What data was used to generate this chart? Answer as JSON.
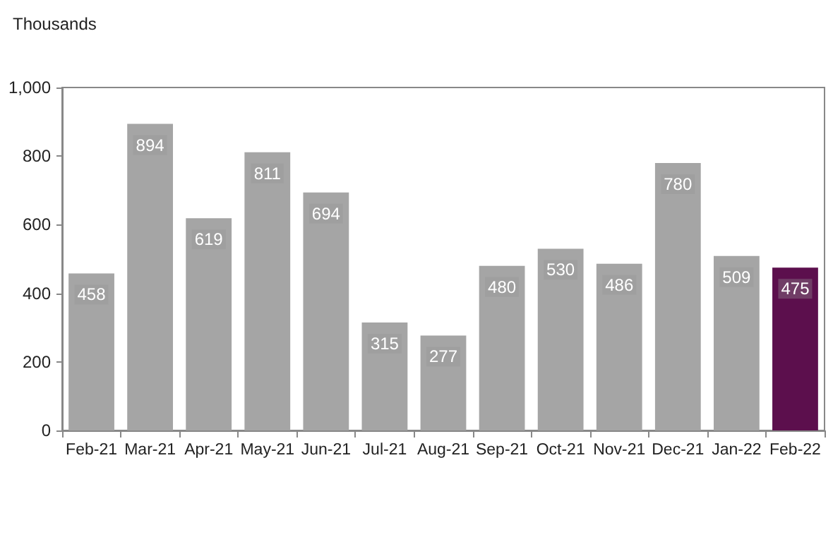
{
  "chart_data": {
    "type": "bar",
    "ylabel": "Thousands",
    "categories": [
      "Feb-21",
      "Mar-21",
      "Apr-21",
      "May-21",
      "Jun-21",
      "Jul-21",
      "Aug-21",
      "Sep-21",
      "Oct-21",
      "Nov-21",
      "Dec-21",
      "Jan-22",
      "Feb-22"
    ],
    "values": [
      458,
      894,
      619,
      811,
      694,
      315,
      277,
      480,
      530,
      486,
      780,
      509,
      475
    ],
    "colors": [
      "#a5a5a5",
      "#a5a5a5",
      "#a5a5a5",
      "#a5a5a5",
      "#a5a5a5",
      "#a5a5a5",
      "#a5a5a5",
      "#a5a5a5",
      "#a5a5a5",
      "#a5a5a5",
      "#a5a5a5",
      "#a5a5a5",
      "#5c0f4d"
    ],
    "ylim": [
      0,
      1000
    ],
    "yticks": [
      0,
      200,
      400,
      600,
      800,
      {
        "value": 1000,
        "label": "1,000"
      }
    ],
    "data_labels": true,
    "grid": false
  }
}
